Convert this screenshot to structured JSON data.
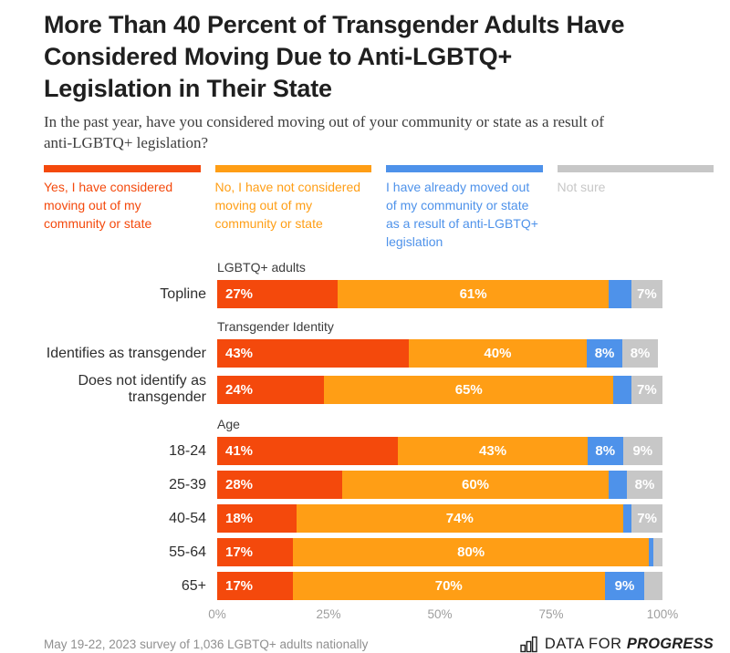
{
  "title": {
    "lines": [
      "More Than 40 Percent of Transgender Adults Have",
      "Considered Moving Due to Anti-LGBTQ+",
      "Legislation in Their State"
    ]
  },
  "subtitle": {
    "lines": [
      "In the past year, have you considered moving out of your community or state as a result of",
      "anti-LGBTQ+ legislation?"
    ]
  },
  "legend": {
    "items": [
      {
        "label": "Yes, I have considered moving out of my community or state",
        "color": "#F4490C"
      },
      {
        "label": "No, I have not considered moving out of my community or state",
        "color": "#FF9E15"
      },
      {
        "label": "I have already moved out of my community or state as a result of anti-LGBTQ+ legislation",
        "color": "#4E92EA"
      },
      {
        "label": "Not sure",
        "color": "#C7C7C7"
      }
    ]
  },
  "chart_data": {
    "type": "bar",
    "subtype": "horizontal-stacked",
    "title": "More Than 40 Percent of Transgender Adults Have Considered Moving Due to Anti-LGBTQ+ Legislation in Their State",
    "question": "In the past year, have you considered moving out of your community or state as a result of anti-LGBTQ+ legislation?",
    "unit": "percent",
    "xlim": [
      0,
      100
    ],
    "x_ticks": [
      "0%",
      "25%",
      "50%",
      "75%",
      "100%"
    ],
    "legend_position": "top",
    "series_names": [
      "Yes, I have considered moving out of my community or state",
      "No, I have not considered moving out of my community or state",
      "I have already moved out of my community or state as a result of anti-LGBTQ+ legislation",
      "Not sure"
    ],
    "groups": [
      {
        "section": "LGBTQ+ adults",
        "rows": [
          {
            "label": "Topline",
            "values": [
              27,
              61,
              5,
              7
            ],
            "display": [
              "27%",
              "61%",
              "",
              "7%"
            ]
          }
        ]
      },
      {
        "section": "Transgender Identity",
        "rows": [
          {
            "label": "Identifies as transgender",
            "values": [
              43,
              40,
              8,
              8
            ],
            "display": [
              "43%",
              "40%",
              "8%",
              "8%"
            ]
          },
          {
            "label": "Does not identify as transgender",
            "values": [
              24,
              65,
              4,
              7
            ],
            "display": [
              "24%",
              "65%",
              "",
              "7%"
            ]
          }
        ]
      },
      {
        "section": "Age",
        "rows": [
          {
            "label": "18-24",
            "values": [
              41,
              43,
              8,
              9
            ],
            "display": [
              "41%",
              "43%",
              "8%",
              "9%"
            ]
          },
          {
            "label": "25-39",
            "values": [
              28,
              60,
              4,
              8
            ],
            "display": [
              "28%",
              "60%",
              "",
              "8%"
            ]
          },
          {
            "label": "40-54",
            "values": [
              18,
              74,
              2,
              7
            ],
            "display": [
              "18%",
              "74%",
              "",
              "7%"
            ]
          },
          {
            "label": "55-64",
            "values": [
              17,
              80,
              1,
              2
            ],
            "display": [
              "17%",
              "80%",
              "",
              ""
            ]
          },
          {
            "label": "65+",
            "values": [
              17,
              70,
              9,
              4
            ],
            "display": [
              "17%",
              "70%",
              "9%",
              ""
            ]
          }
        ]
      }
    ]
  },
  "footer": {
    "source": "May 19-22, 2023 survey of 1,036 LGBTQ+ adults nationally",
    "logo": {
      "prefix": "DATA FOR",
      "name": "PROGRESS"
    }
  }
}
